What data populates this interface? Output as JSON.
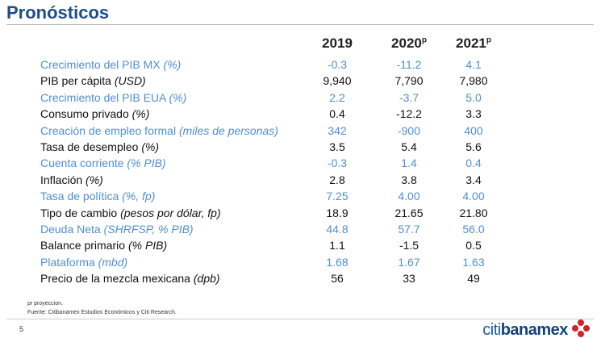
{
  "header": {
    "title": "Pronósticos"
  },
  "table": {
    "columns": [
      {
        "year": "2019"
      },
      {
        "year": "2020",
        "sup": "p"
      },
      {
        "year": "2021",
        "sup": "p"
      }
    ],
    "rows": [
      {
        "label": "Crecimiento del PIB MX",
        "unit": "(%)",
        "values": [
          "-0.3",
          "-11.2",
          "4.1"
        ]
      },
      {
        "label": "PIB per cápita",
        "unit": "(USD)",
        "values": [
          "9,940",
          "7,790",
          "7,980"
        ]
      },
      {
        "label": "Crecimiento del PIB EUA",
        "unit": "(%)",
        "values": [
          "2.2",
          "-3.7",
          "5.0"
        ]
      },
      {
        "label": "Consumo privado",
        "unit": "(%)",
        "values": [
          "0.4",
          "-12.2",
          "3.3"
        ]
      },
      {
        "label": "Creación de empleo formal",
        "unit": "(miles de personas)",
        "values": [
          "342",
          "-900",
          "400"
        ]
      },
      {
        "label": "Tasa de desempleo",
        "unit": "(%)",
        "values": [
          "3.5",
          "5.4",
          "5.6"
        ]
      },
      {
        "label": "Cuenta corriente",
        "unit": "(% PIB)",
        "values": [
          "-0.3",
          "1.4",
          "0.4"
        ]
      },
      {
        "label": "Inflación",
        "unit": "(%)",
        "values": [
          "2.8",
          "3.8",
          "3.4"
        ]
      },
      {
        "label": "Tasa de política",
        "unit": "(%, fp)",
        "values": [
          "7.25",
          "4.00",
          "4.00"
        ]
      },
      {
        "label": "Tipo de cambio",
        "unit": "(pesos por dólar, fp)",
        "values": [
          "18.9",
          "21.65",
          "21.80"
        ]
      },
      {
        "label": "Deuda Neta",
        "unit": "(SHRFSP, % PIB)",
        "values": [
          "44.8",
          "57.7",
          "56.0"
        ]
      },
      {
        "label": "Balance primario",
        "unit": "(% PIB)",
        "values": [
          "1.1",
          "-1.5",
          "0.5"
        ]
      },
      {
        "label": "Plataforma",
        "unit": "(mbd)",
        "values": [
          "1.68",
          "1.67",
          "1.63"
        ]
      },
      {
        "label": "Precio de la mezcla mexicana",
        "unit": "(dpb)",
        "values": [
          "56",
          "33",
          "49"
        ]
      }
    ]
  },
  "footer": {
    "note": "pr proyeccion.",
    "source": "Fuente: Citibanamex Estudios Económicos y Citi Research.",
    "page": "5",
    "logo": {
      "part1": "citi",
      "part2": "banamex"
    }
  }
}
